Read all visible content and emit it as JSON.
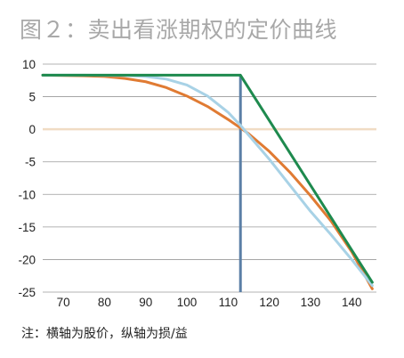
{
  "title": "图２：卖出看涨期权的定价曲线",
  "note": "注：横轴为股价，纵轴为损/益",
  "chart_data": {
    "type": "line",
    "title": "图２：卖出看涨期权的定价曲线",
    "xlabel": "",
    "ylabel": "",
    "xlim": [
      65,
      146
    ],
    "ylim": [
      -25,
      10
    ],
    "x_ticks": [
      "70",
      "80",
      "90",
      "100",
      "110",
      "120",
      "130",
      "140"
    ],
    "y_ticks": [
      "10",
      "5",
      "0",
      "-5",
      "-10",
      "-15",
      "-20",
      "-25"
    ],
    "grid": true,
    "colors": {
      "dark_green": "#1e8a4e",
      "light_blue": "#a8d2e6",
      "orange": "#e07b33",
      "strike_line": "#5a7fa6",
      "zero_line": "#f0dcc4",
      "grid": "#9a9a9a"
    },
    "strike": 113,
    "series": [
      {
        "name": "",
        "color": "#1e8a4e",
        "x": [
          65,
          113,
          145
        ],
        "y": [
          8.3,
          8.3,
          -23.5
        ]
      },
      {
        "name": "",
        "color": "#a8d2e6",
        "x": [
          65,
          75,
          85,
          90,
          95,
          100,
          105,
          110,
          113,
          115,
          120,
          125,
          130,
          135,
          140,
          145
        ],
        "y": [
          8.3,
          8.3,
          8.25,
          8.1,
          7.7,
          6.8,
          5.1,
          2.6,
          0.6,
          -0.9,
          -4.6,
          -8.6,
          -12.6,
          -16.2,
          -20.0,
          -24.0
        ]
      },
      {
        "name": "",
        "color": "#e07b33",
        "x": [
          65,
          75,
          80,
          85,
          90,
          95,
          100,
          105,
          110,
          113,
          115,
          120,
          125,
          130,
          135,
          140,
          145
        ],
        "y": [
          8.3,
          8.2,
          8.1,
          7.8,
          7.3,
          6.4,
          5.1,
          3.5,
          1.5,
          0.2,
          -0.7,
          -3.4,
          -6.6,
          -10.2,
          -14.1,
          -18.8,
          -24.5
        ]
      }
    ]
  }
}
